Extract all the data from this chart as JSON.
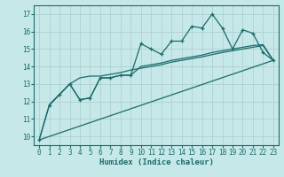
{
  "bg_color": "#c6e8e8",
  "grid_color": "#a8cccc",
  "line_color": "#1a6b6b",
  "xlabel": "Humidex (Indice chaleur)",
  "xlim": [
    -0.5,
    23.5
  ],
  "ylim": [
    9.5,
    17.5
  ],
  "xticks": [
    0,
    1,
    2,
    3,
    4,
    5,
    6,
    7,
    8,
    9,
    10,
    11,
    12,
    13,
    14,
    15,
    16,
    17,
    18,
    19,
    20,
    21,
    22,
    23
  ],
  "yticks": [
    10,
    11,
    12,
    13,
    14,
    15,
    16,
    17
  ],
  "curves": [
    {
      "x": [
        0,
        1,
        2,
        3,
        4,
        5,
        6,
        7,
        8,
        9,
        10,
        11,
        12,
        13,
        14,
        15,
        16,
        17,
        18,
        19,
        20,
        21,
        22,
        23
      ],
      "y": [
        9.8,
        11.8,
        12.4,
        13.0,
        12.1,
        12.2,
        13.35,
        13.35,
        13.5,
        13.5,
        15.3,
        15.0,
        14.7,
        15.45,
        15.45,
        16.3,
        16.2,
        17.0,
        16.2,
        15.0,
        16.1,
        15.9,
        14.8,
        14.35
      ],
      "marker": true,
      "lw": 0.9
    },
    {
      "x": [
        1,
        2,
        3,
        4,
        5,
        6,
        7,
        8,
        9,
        10,
        11,
        12,
        13,
        14,
        15,
        16,
        17,
        18,
        19,
        20,
        21,
        22,
        23
      ],
      "y": [
        11.8,
        12.4,
        13.0,
        12.1,
        12.2,
        13.35,
        13.35,
        13.5,
        13.5,
        14.0,
        14.1,
        14.2,
        14.35,
        14.45,
        14.55,
        14.65,
        14.8,
        14.9,
        15.0,
        15.1,
        15.2,
        15.25,
        14.35
      ],
      "marker": false,
      "lw": 0.9
    },
    {
      "x": [
        0,
        1,
        2,
        3,
        4,
        5,
        6,
        7,
        8,
        9,
        10,
        11,
        12,
        13,
        14,
        15,
        16,
        17,
        18,
        19,
        20,
        21,
        22,
        23
      ],
      "y": [
        9.8,
        11.8,
        12.4,
        13.0,
        13.35,
        13.45,
        13.45,
        13.55,
        13.65,
        13.8,
        13.9,
        14.0,
        14.1,
        14.25,
        14.35,
        14.45,
        14.55,
        14.68,
        14.8,
        14.9,
        15.0,
        15.1,
        15.2,
        14.35
      ],
      "marker": false,
      "lw": 0.9
    },
    {
      "x": [
        0,
        23
      ],
      "y": [
        9.8,
        14.35
      ],
      "marker": false,
      "lw": 0.9
    }
  ]
}
